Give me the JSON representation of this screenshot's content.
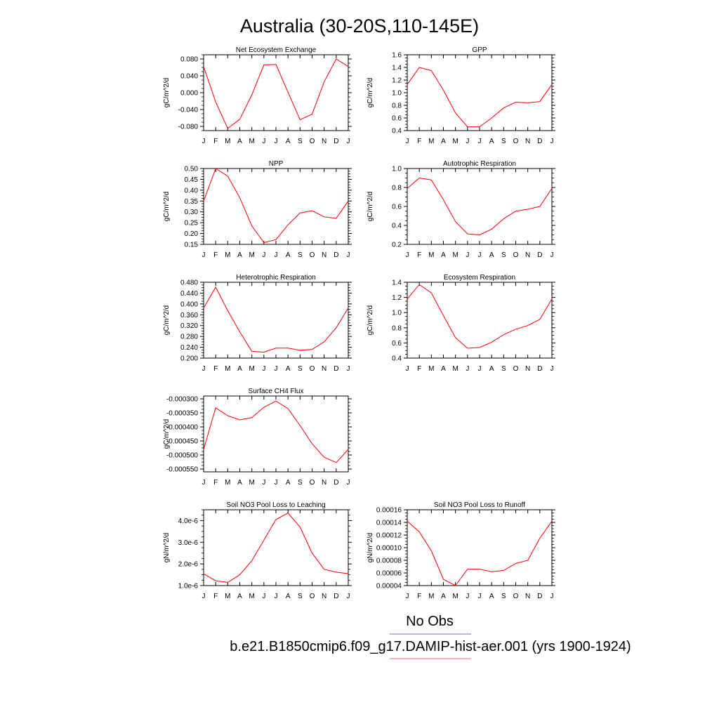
{
  "page_title": "Australia (30-20S,110-145E)",
  "legend": {
    "obs_label": "No Obs",
    "obs_color": "#8a8aee",
    "case_label": "b.e21.B1850cmip6.f09_g17.DAMIP-hist-aer.001 (yrs 1900-1924)",
    "case_color": "#f08a8a"
  },
  "line_color": "#ff0000",
  "chart_data": [
    {
      "type": "line",
      "title": "Net Ecosystem Exchange",
      "ylabel": "gC/m^2/d",
      "x": [
        "J",
        "F",
        "M",
        "A",
        "M",
        "J",
        "J",
        "A",
        "S",
        "O",
        "N",
        "D",
        "J"
      ],
      "ylim": [
        -0.09,
        0.09
      ],
      "yticks": [
        -0.08,
        -0.04,
        0.0,
        0.04,
        0.08
      ],
      "ytick_labels": [
        "-0.080",
        "-0.040",
        "0.000",
        "0.040",
        "0.080"
      ],
      "values": [
        0.062,
        -0.022,
        -0.085,
        -0.063,
        -0.005,
        0.066,
        0.067,
        0.001,
        -0.064,
        -0.051,
        0.026,
        0.08,
        0.062
      ]
    },
    {
      "type": "line",
      "title": "GPP",
      "ylabel": "gC/m^2/d",
      "x": [
        "J",
        "F",
        "M",
        "A",
        "M",
        "J",
        "J",
        "A",
        "S",
        "O",
        "N",
        "D",
        "J"
      ],
      "ylim": [
        0.4,
        1.6
      ],
      "yticks": [
        0.4,
        0.6,
        0.8,
        1.0,
        1.2,
        1.4,
        1.6
      ],
      "ytick_labels": [
        "0.4",
        "0.6",
        "0.8",
        "1.0",
        "1.2",
        "1.4",
        "1.6"
      ],
      "values": [
        1.13,
        1.4,
        1.35,
        1.04,
        0.68,
        0.46,
        0.46,
        0.6,
        0.76,
        0.85,
        0.84,
        0.86,
        1.13
      ]
    },
    {
      "type": "line",
      "title": "NPP",
      "ylabel": "gC/m^2/d",
      "x": [
        "J",
        "F",
        "M",
        "A",
        "M",
        "J",
        "J",
        "A",
        "S",
        "O",
        "N",
        "D",
        "J"
      ],
      "ylim": [
        0.15,
        0.5
      ],
      "yticks": [
        0.15,
        0.2,
        0.25,
        0.3,
        0.35,
        0.4,
        0.45,
        0.5
      ],
      "ytick_labels": [
        "0.15",
        "0.20",
        "0.25",
        "0.30",
        "0.35",
        "0.40",
        "0.45",
        "0.50"
      ],
      "values": [
        0.35,
        0.5,
        0.465,
        0.365,
        0.235,
        0.158,
        0.172,
        0.24,
        0.295,
        0.305,
        0.277,
        0.27,
        0.35
      ]
    },
    {
      "type": "line",
      "title": "Autotrophic Respiration",
      "ylabel": "gC/m^2/d",
      "x": [
        "J",
        "F",
        "M",
        "A",
        "M",
        "J",
        "J",
        "A",
        "S",
        "O",
        "N",
        "D",
        "J"
      ],
      "ylim": [
        0.2,
        1.0
      ],
      "yticks": [
        0.2,
        0.4,
        0.6,
        0.8,
        1.0
      ],
      "ytick_labels": [
        "0.2",
        "0.4",
        "0.6",
        "0.8",
        "1.0"
      ],
      "values": [
        0.79,
        0.9,
        0.88,
        0.67,
        0.44,
        0.31,
        0.3,
        0.36,
        0.47,
        0.55,
        0.57,
        0.6,
        0.79
      ]
    },
    {
      "type": "line",
      "title": "Heterotrophic Respiration",
      "ylabel": "gC/m^2/d",
      "x": [
        "J",
        "F",
        "M",
        "A",
        "M",
        "J",
        "J",
        "A",
        "S",
        "O",
        "N",
        "D",
        "J"
      ],
      "ylim": [
        0.2,
        0.48
      ],
      "yticks": [
        0.2,
        0.24,
        0.28,
        0.32,
        0.36,
        0.4,
        0.44,
        0.48
      ],
      "ytick_labels": [
        "0.200",
        "0.240",
        "0.280",
        "0.320",
        "0.360",
        "0.400",
        "0.440",
        "0.480"
      ],
      "values": [
        0.385,
        0.462,
        0.375,
        0.297,
        0.225,
        0.222,
        0.237,
        0.237,
        0.229,
        0.232,
        0.26,
        0.312,
        0.385
      ]
    },
    {
      "type": "line",
      "title": "Ecosystem Respiration",
      "ylabel": "gC/m^2/d",
      "x": [
        "J",
        "F",
        "M",
        "A",
        "M",
        "J",
        "J",
        "A",
        "S",
        "O",
        "N",
        "D",
        "J"
      ],
      "ylim": [
        0.4,
        1.4
      ],
      "yticks": [
        0.4,
        0.6,
        0.8,
        1.0,
        1.2,
        1.4
      ],
      "ytick_labels": [
        "0.4",
        "0.6",
        "0.8",
        "1.0",
        "1.2",
        "1.4"
      ],
      "values": [
        1.18,
        1.37,
        1.26,
        0.96,
        0.67,
        0.53,
        0.54,
        0.61,
        0.71,
        0.78,
        0.83,
        0.91,
        1.18
      ]
    },
    {
      "type": "line",
      "title": "Surface CH4 Flux",
      "ylabel": "gC/m^2/d",
      "x": [
        "J",
        "F",
        "M",
        "A",
        "M",
        "J",
        "J",
        "A",
        "S",
        "O",
        "N",
        "D",
        "J"
      ],
      "ylim": [
        -0.00056,
        -0.00029
      ],
      "yticks": [
        -0.00055,
        -0.0005,
        -0.00045,
        -0.0004,
        -0.00035,
        -0.0003
      ],
      "ytick_labels": [
        "-0.000550",
        "-0.000500",
        "-0.000450",
        "-0.000400",
        "-0.000350",
        "-0.000300"
      ],
      "values": [
        -0.00048,
        -0.000332,
        -0.00036,
        -0.000375,
        -0.000367,
        -0.00033,
        -0.000308,
        -0.000335,
        -0.000395,
        -0.00046,
        -0.000508,
        -0.000527,
        -0.00048
      ]
    },
    {
      "type": "line",
      "title": "Soil NO3 Pool Loss to Leaching",
      "ylabel": "gN/m^2/d",
      "x": [
        "J",
        "F",
        "M",
        "A",
        "M",
        "J",
        "J",
        "A",
        "S",
        "O",
        "N",
        "D",
        "J"
      ],
      "ylim": [
        1e-06,
        4.5e-06
      ],
      "yticks": [
        1e-06,
        2e-06,
        3e-06,
        4e-06
      ],
      "ytick_labels": [
        "1.0e-6",
        "2.0e-6",
        "3.0e-6",
        "4.0e-6"
      ],
      "values": [
        1.55e-06,
        1.22e-06,
        1.15e-06,
        1.5e-06,
        2.15e-06,
        3.1e-06,
        4.05e-06,
        4.35e-06,
        3.7e-06,
        2.5e-06,
        1.75e-06,
        1.62e-06,
        1.55e-06
      ]
    },
    {
      "type": "line",
      "title": "Soil NO3 Pool Loss to Runoff",
      "ylabel": "gN/m^2/d",
      "x": [
        "J",
        "F",
        "M",
        "A",
        "M",
        "J",
        "J",
        "A",
        "S",
        "O",
        "N",
        "D",
        "J"
      ],
      "ylim": [
        4e-05,
        0.00016
      ],
      "yticks": [
        4e-05,
        6e-05,
        8e-05,
        0.0001,
        0.00012,
        0.00014,
        0.00016
      ],
      "ytick_labels": [
        "0.00004",
        "0.00006",
        "0.00008",
        "0.00010",
        "0.00012",
        "0.00014",
        "0.00016"
      ],
      "values": [
        0.000142,
        0.000125,
        9.5e-05,
        5e-05,
        4e-05,
        6.6e-05,
        6.6e-05,
        6.2e-05,
        6.4e-05,
        7.5e-05,
        8e-05,
        0.000115,
        0.000142
      ]
    }
  ]
}
